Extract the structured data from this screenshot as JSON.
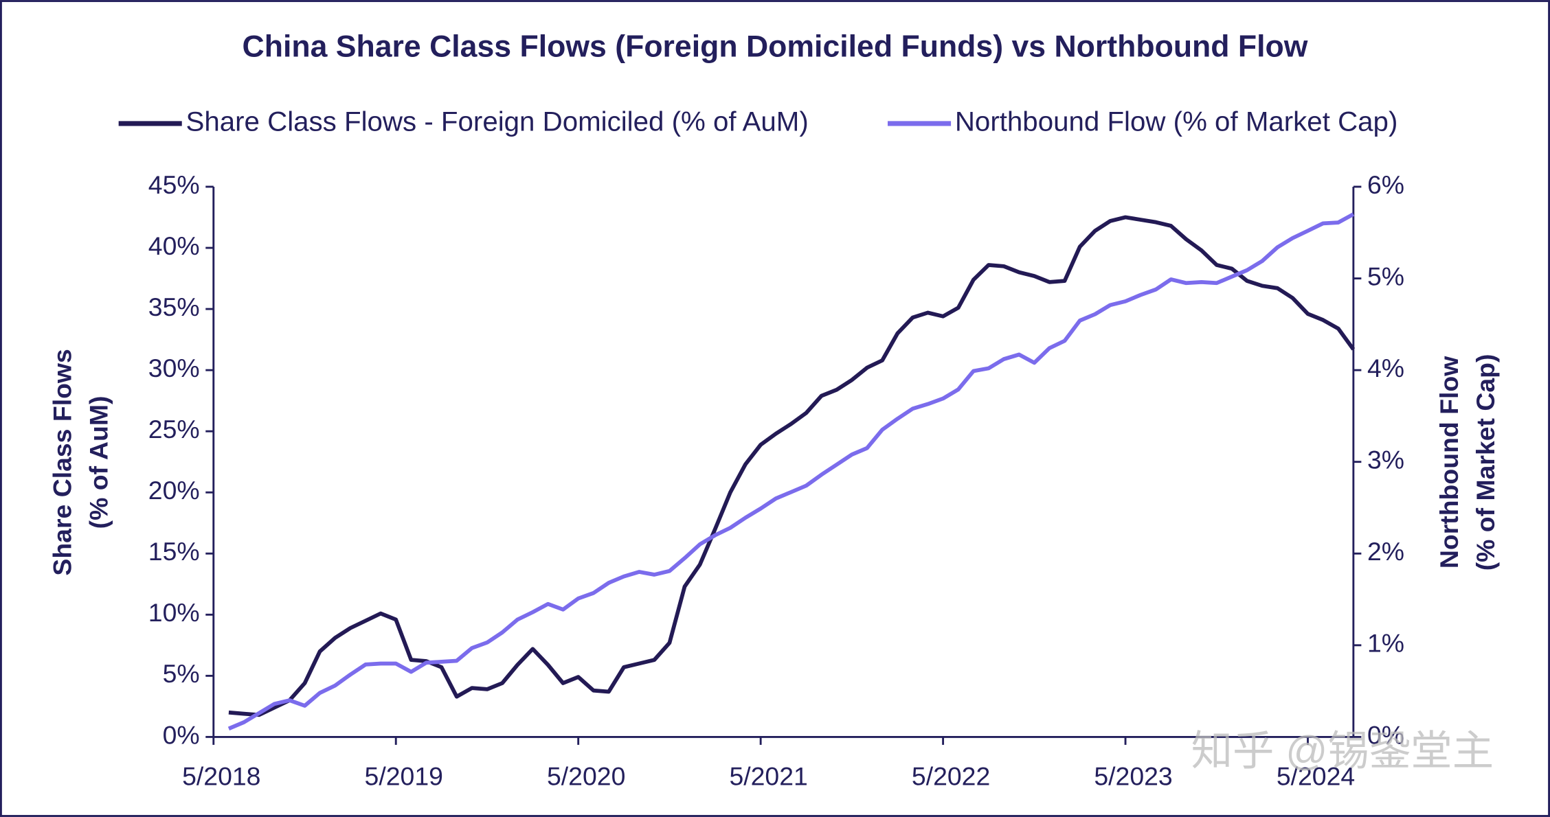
{
  "chart_data": {
    "type": "line",
    "title": "China Share Class Flows (Foreign Domiciled Funds) vs Northbound Flow",
    "ylabel": [
      "Share Class Flows",
      "(% of AuM)"
    ],
    "y2label": [
      "Northbound Flow",
      "(% of Market Cap)"
    ],
    "watermark": "知乎 @锡銎堂主",
    "x": [
      "6/2018",
      "7/2018",
      "8/2018",
      "9/2018",
      "10/2018",
      "11/2018",
      "12/2018",
      "1/2019",
      "2/2019",
      "3/2019",
      "4/2019",
      "5/2019",
      "6/2019",
      "7/2019",
      "8/2019",
      "9/2019",
      "10/2019",
      "11/2019",
      "12/2019",
      "1/2020",
      "2/2020",
      "3/2020",
      "4/2020",
      "5/2020",
      "6/2020",
      "7/2020",
      "8/2020",
      "9/2020",
      "10/2020",
      "11/2020",
      "12/2020",
      "1/2021",
      "2/2021",
      "3/2021",
      "4/2021",
      "5/2021",
      "6/2021",
      "7/2021",
      "8/2021",
      "9/2021",
      "10/2021",
      "11/2021",
      "12/2021",
      "1/2022",
      "2/2022",
      "3/2022",
      "4/2022",
      "5/2022",
      "6/2022",
      "7/2022",
      "8/2022",
      "9/2022",
      "10/2022",
      "11/2022",
      "12/2022",
      "1/2023",
      "2/2023",
      "3/2023",
      "4/2023",
      "5/2023",
      "6/2023",
      "7/2023",
      "8/2023",
      "9/2023",
      "10/2023",
      "11/2023",
      "12/2023",
      "1/2024",
      "2/2024",
      "3/2024",
      "4/2024",
      "5/2024",
      "6/2024",
      "7/2024",
      "8/2024"
    ],
    "xlim": [
      "5/2018",
      "8/2024"
    ],
    "xticks": [
      "5/2018",
      "5/2019",
      "5/2020",
      "5/2021",
      "5/2022",
      "5/2023",
      "5/2024"
    ],
    "ylim": [
      0,
      45
    ],
    "yticks": [
      {
        "value": 0,
        "label": "0%"
      },
      {
        "value": 5,
        "label": "5%"
      },
      {
        "value": 10,
        "label": "10%"
      },
      {
        "value": 15,
        "label": "15%"
      },
      {
        "value": 20,
        "label": "20%"
      },
      {
        "value": 25,
        "label": "25%"
      },
      {
        "value": 30,
        "label": "30%"
      },
      {
        "value": 35,
        "label": "35%"
      },
      {
        "value": 40,
        "label": "40%"
      },
      {
        "value": 45,
        "label": "45%"
      }
    ],
    "y2lim": [
      0,
      6
    ],
    "y2ticks": [
      {
        "value": 0,
        "label": "0%"
      },
      {
        "value": 1,
        "label": "1%"
      },
      {
        "value": 2,
        "label": "2%"
      },
      {
        "value": 3,
        "label": "3%"
      },
      {
        "value": 4,
        "label": "4%"
      },
      {
        "value": 5,
        "label": "5%"
      },
      {
        "value": 6,
        "label": "6%"
      }
    ],
    "legend": "top",
    "series": [
      {
        "name": "Share Class Flows - Foreign Domiciled (% of AuM)",
        "color": "#231a55",
        "axis": "y",
        "values": [
          2.0,
          1.9,
          1.8,
          2.4,
          3.0,
          4.4,
          7.0,
          8.1,
          8.9,
          9.5,
          10.1,
          9.6,
          6.3,
          6.2,
          5.7,
          3.3,
          4.0,
          3.9,
          4.4,
          5.9,
          7.2,
          5.9,
          4.4,
          4.9,
          3.8,
          3.7,
          5.7,
          6.0,
          6.3,
          7.7,
          12.3,
          14.1,
          17.0,
          20.0,
          22.3,
          23.9,
          24.8,
          25.6,
          26.5,
          27.9,
          28.4,
          29.2,
          30.2,
          30.8,
          33.0,
          34.3,
          34.7,
          34.4,
          35.1,
          37.4,
          38.6,
          38.5,
          38.0,
          37.7,
          37.2,
          37.3,
          40.1,
          41.4,
          42.2,
          42.5,
          42.3,
          42.1,
          41.8,
          40.7,
          39.8,
          38.6,
          38.3,
          37.3,
          36.9,
          36.7,
          35.9,
          34.6,
          34.1,
          33.4,
          31.7
        ]
      },
      {
        "name": "Northbound Flow (% of Market Cap)",
        "color": "#7b6cec",
        "axis": "y2",
        "values": [
          0.09,
          0.16,
          0.26,
          0.36,
          0.4,
          0.34,
          0.48,
          0.56,
          0.68,
          0.79,
          0.8,
          0.8,
          0.71,
          0.81,
          0.82,
          0.83,
          0.97,
          1.03,
          1.14,
          1.28,
          1.36,
          1.45,
          1.39,
          1.51,
          1.57,
          1.68,
          1.75,
          1.8,
          1.77,
          1.81,
          1.95,
          2.1,
          2.2,
          2.28,
          2.39,
          2.49,
          2.6,
          2.67,
          2.74,
          2.86,
          2.97,
          3.08,
          3.15,
          3.35,
          3.47,
          3.58,
          3.63,
          3.69,
          3.79,
          3.99,
          4.02,
          4.12,
          4.17,
          4.08,
          4.24,
          4.32,
          4.54,
          4.61,
          4.71,
          4.75,
          4.82,
          4.88,
          4.99,
          4.95,
          4.96,
          4.95,
          5.02,
          5.09,
          5.19,
          5.34,
          5.44,
          5.52,
          5.6,
          5.61,
          5.7
        ]
      }
    ]
  }
}
